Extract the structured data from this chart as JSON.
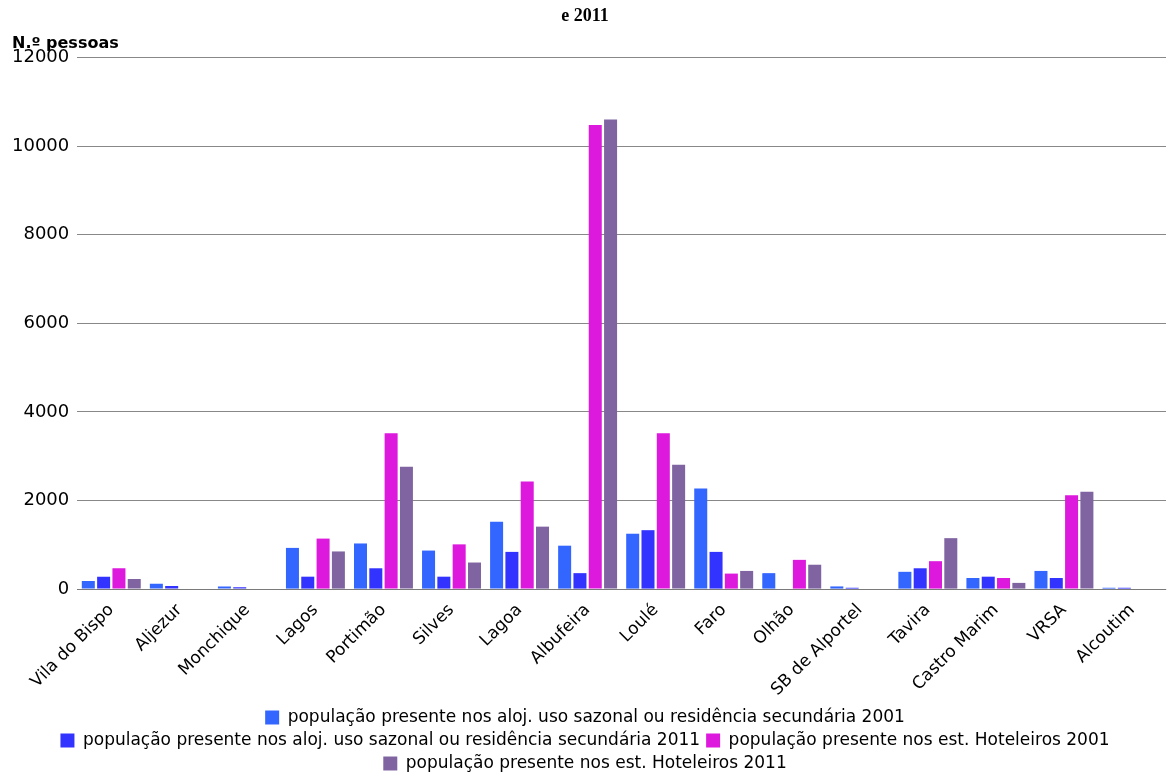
{
  "chart_data": {
    "type": "bar",
    "title": "e 2011",
    "ylabel": "N.º pessoas",
    "categories": [
      "Vila do Bispo",
      "Aljezur",
      "Monchique",
      "Lagos",
      "Portimão",
      "Silves",
      "Lagoa",
      "Albufeira",
      "Loulé",
      "Faro",
      "Olhão",
      "SB de Alportel",
      "Tavira",
      "Castro Marim",
      "VRSA",
      "Alcoutim"
    ],
    "series": [
      {
        "name": "população presente nos aloj. uso sazonal ou residência secundária 2001",
        "color": "#3366ff",
        "values": [
          180,
          120,
          60,
          930,
          1030,
          870,
          1520,
          980,
          1250,
          2270,
          360,
          60,
          390,
          250,
          410,
          30
        ]
      },
      {
        "name": "população presente nos aloj. uso sazonal ou residência secundária 2011",
        "color": "#3333ff",
        "values": [
          280,
          70,
          40,
          280,
          470,
          280,
          840,
          360,
          1330,
          840,
          0,
          30,
          470,
          280,
          250,
          30
        ]
      },
      {
        "name": "população presente nos est. Hoteleiros 2001",
        "color": "#dd19dd",
        "values": [
          470,
          0,
          0,
          1140,
          3520,
          1010,
          2430,
          10480,
          3520,
          350,
          660,
          0,
          630,
          250,
          2120,
          0
        ]
      },
      {
        "name": "população presente nos est. Hoteleiros 2011",
        "color": "#8064a2",
        "values": [
          230,
          0,
          0,
          850,
          2760,
          600,
          1410,
          10600,
          2810,
          410,
          550,
          0,
          1150,
          140,
          2200,
          0
        ]
      }
    ],
    "ylim": [
      0,
      12000
    ],
    "yticks": [
      0,
      2000,
      4000,
      6000,
      8000,
      10000,
      12000
    ],
    "grid": "y",
    "legend": "bottom"
  }
}
